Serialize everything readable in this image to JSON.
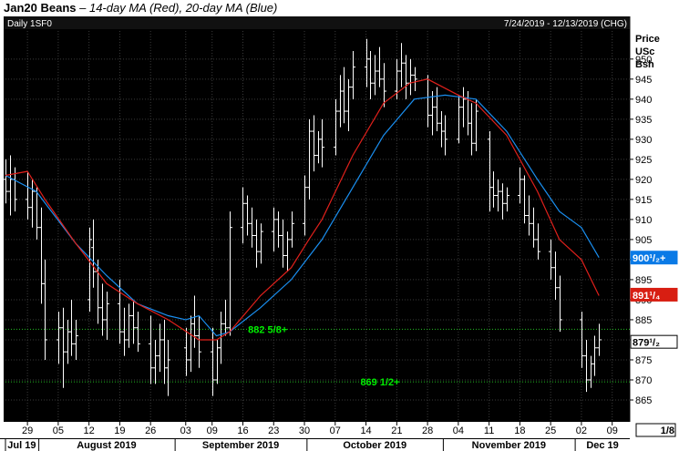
{
  "header": {
    "title": "Jan20 Beans",
    "subtitle": "14-day MA (Red), 20-day MA (Blue)"
  },
  "panel": {
    "left_label": "Daily 1SF0",
    "right_label": "7/24/2019 - 12/13/2019 (CHG)",
    "axis_title_lines": [
      "Price",
      "USc",
      "Bsh"
    ],
    "scale_label": "1/8"
  },
  "colors": {
    "background": "#000000",
    "axis_panel": "#ffffff",
    "bars": "#ffffff",
    "ma14": "#e0201b",
    "ma20": "#1a8ff0",
    "level_lines": "#22bb22",
    "level_text": "#00ee00",
    "ma20_tag": "#0a7ae6",
    "ma14_tag": "#d81e12"
  },
  "chart_data": {
    "type": "ohlc",
    "title": "Jan20 Beans",
    "subtitle": "14-day MA (Red), 20-day MA (Blue)",
    "ylabel": "Price USc Bsh",
    "ylim": [
      860,
      957
    ],
    "grid": true,
    "y_ticks": [
      865,
      870,
      875,
      880,
      885,
      890,
      895,
      900,
      905,
      910,
      915,
      920,
      925,
      930,
      935,
      940,
      945,
      950
    ],
    "y_tick_labels": [
      "865",
      "870",
      "875",
      "880",
      "885",
      "890",
      "895",
      "900",
      "905",
      "910",
      "915",
      "920",
      "925",
      "930",
      "935",
      "940",
      "945",
      "950"
    ],
    "x_ticks": [
      {
        "date": "2019-07-29",
        "label": "29"
      },
      {
        "date": "2019-08-05",
        "label": "05"
      },
      {
        "date": "2019-08-12",
        "label": "12"
      },
      {
        "date": "2019-08-19",
        "label": "19"
      },
      {
        "date": "2019-08-26",
        "label": "26"
      },
      {
        "date": "2019-09-03",
        "label": "03"
      },
      {
        "date": "2019-09-09",
        "label": "09"
      },
      {
        "date": "2019-09-16",
        "label": "16"
      },
      {
        "date": "2019-09-23",
        "label": "23"
      },
      {
        "date": "2019-09-30",
        "label": "30"
      },
      {
        "date": "2019-10-07",
        "label": "07"
      },
      {
        "date": "2019-10-14",
        "label": "14"
      },
      {
        "date": "2019-10-21",
        "label": "21"
      },
      {
        "date": "2019-10-28",
        "label": "28"
      },
      {
        "date": "2019-11-04",
        "label": "04"
      },
      {
        "date": "2019-11-11",
        "label": "11"
      },
      {
        "date": "2019-11-18",
        "label": "18"
      },
      {
        "date": "2019-11-25",
        "label": "25"
      },
      {
        "date": "2019-12-02",
        "label": "02"
      },
      {
        "date": "2019-12-09",
        "label": "09"
      }
    ],
    "x_range": [
      "2019-07-24",
      "2019-12-13"
    ],
    "months": [
      {
        "label": "Jul 19",
        "start": "2019-07-24",
        "end": "2019-07-31"
      },
      {
        "label": "August 2019",
        "start": "2019-08-01",
        "end": "2019-08-31"
      },
      {
        "label": "September 2019",
        "start": "2019-09-01",
        "end": "2019-09-30"
      },
      {
        "label": "October 2019",
        "start": "2019-10-01",
        "end": "2019-10-31"
      },
      {
        "label": "November 2019",
        "start": "2019-11-01",
        "end": "2019-11-30"
      },
      {
        "label": "Dec 19",
        "start": "2019-12-01",
        "end": "2019-12-13"
      }
    ],
    "ohlc": [
      {
        "d": "2019-07-24",
        "o": 920,
        "h": 925,
        "l": 914,
        "c": 917
      },
      {
        "d": "2019-07-25",
        "o": 917,
        "h": 926,
        "l": 911,
        "c": 920
      },
      {
        "d": "2019-07-26",
        "o": 920,
        "h": 923,
        "l": 912,
        "c": 915
      },
      {
        "d": "2019-07-29",
        "o": 915,
        "h": 922,
        "l": 910,
        "c": 913
      },
      {
        "d": "2019-07-30",
        "o": 913,
        "h": 920,
        "l": 908,
        "c": 917
      },
      {
        "d": "2019-07-31",
        "o": 917,
        "h": 918,
        "l": 905,
        "c": 908
      },
      {
        "d": "2019-08-01",
        "o": 908,
        "h": 913,
        "l": 889,
        "c": 894
      },
      {
        "d": "2019-08-02",
        "o": 894,
        "h": 900,
        "l": 875,
        "c": 880
      },
      {
        "d": "2019-08-05",
        "o": 880,
        "h": 887,
        "l": 874,
        "c": 883
      },
      {
        "d": "2019-08-06",
        "o": 883,
        "h": 888,
        "l": 868,
        "c": 877
      },
      {
        "d": "2019-08-07",
        "o": 877,
        "h": 885,
        "l": 874,
        "c": 882
      },
      {
        "d": "2019-08-08",
        "o": 882,
        "h": 890,
        "l": 876,
        "c": 879
      },
      {
        "d": "2019-08-09",
        "o": 879,
        "h": 885,
        "l": 875,
        "c": 881
      },
      {
        "d": "2019-08-12",
        "o": 890,
        "h": 908,
        "l": 887,
        "c": 905
      },
      {
        "d": "2019-08-13",
        "o": 903,
        "h": 910,
        "l": 893,
        "c": 897
      },
      {
        "d": "2019-08-14",
        "o": 897,
        "h": 900,
        "l": 884,
        "c": 888
      },
      {
        "d": "2019-08-15",
        "o": 888,
        "h": 894,
        "l": 881,
        "c": 885
      },
      {
        "d": "2019-08-16",
        "o": 885,
        "h": 892,
        "l": 880,
        "c": 889
      },
      {
        "d": "2019-08-19",
        "o": 889,
        "h": 895,
        "l": 879,
        "c": 882
      },
      {
        "d": "2019-08-20",
        "o": 882,
        "h": 888,
        "l": 876,
        "c": 880
      },
      {
        "d": "2019-08-21",
        "o": 880,
        "h": 889,
        "l": 878,
        "c": 886
      },
      {
        "d": "2019-08-22",
        "o": 886,
        "h": 890,
        "l": 879,
        "c": 883
      },
      {
        "d": "2019-08-23",
        "o": 883,
        "h": 887,
        "l": 877,
        "c": 879
      },
      {
        "d": "2019-08-26",
        "o": 879,
        "h": 886,
        "l": 869,
        "c": 873
      },
      {
        "d": "2019-08-27",
        "o": 873,
        "h": 880,
        "l": 869,
        "c": 876
      },
      {
        "d": "2019-08-28",
        "o": 876,
        "h": 884,
        "l": 872,
        "c": 880
      },
      {
        "d": "2019-08-29",
        "o": 880,
        "h": 885,
        "l": 869,
        "c": 873
      },
      {
        "d": "2019-08-30",
        "o": 873,
        "h": 880,
        "l": 866,
        "c": 875
      },
      {
        "d": "2019-09-03",
        "o": 878,
        "h": 883,
        "l": 871,
        "c": 875
      },
      {
        "d": "2019-09-04",
        "o": 875,
        "h": 886,
        "l": 872,
        "c": 884
      },
      {
        "d": "2019-09-05",
        "o": 884,
        "h": 891,
        "l": 878,
        "c": 881
      },
      {
        "d": "2019-09-06",
        "o": 881,
        "h": 886,
        "l": 873,
        "c": 877
      },
      {
        "d": "2019-09-09",
        "o": 877,
        "h": 883,
        "l": 866,
        "c": 870
      },
      {
        "d": "2019-09-10",
        "o": 870,
        "h": 880,
        "l": 869,
        "c": 878
      },
      {
        "d": "2019-09-11",
        "o": 878,
        "h": 887,
        "l": 874,
        "c": 884
      },
      {
        "d": "2019-09-12",
        "o": 884,
        "h": 890,
        "l": 881,
        "c": 883
      },
      {
        "d": "2019-09-13",
        "o": 883,
        "h": 912,
        "l": 881,
        "c": 908
      },
      {
        "d": "2019-09-16",
        "o": 908,
        "h": 918,
        "l": 904,
        "c": 914
      },
      {
        "d": "2019-09-17",
        "o": 914,
        "h": 916,
        "l": 906,
        "c": 909
      },
      {
        "d": "2019-09-18",
        "o": 909,
        "h": 913,
        "l": 903,
        "c": 906
      },
      {
        "d": "2019-09-19",
        "o": 906,
        "h": 910,
        "l": 898,
        "c": 902
      },
      {
        "d": "2019-09-20",
        "o": 902,
        "h": 909,
        "l": 899,
        "c": 907
      },
      {
        "d": "2019-09-23",
        "o": 907,
        "h": 913,
        "l": 902,
        "c": 910
      },
      {
        "d": "2019-09-24",
        "o": 910,
        "h": 912,
        "l": 903,
        "c": 906
      },
      {
        "d": "2019-09-25",
        "o": 906,
        "h": 910,
        "l": 898,
        "c": 901
      },
      {
        "d": "2019-09-26",
        "o": 901,
        "h": 907,
        "l": 897,
        "c": 905
      },
      {
        "d": "2019-09-27",
        "o": 905,
        "h": 912,
        "l": 903,
        "c": 909
      },
      {
        "d": "2019-09-30",
        "o": 909,
        "h": 921,
        "l": 906,
        "c": 918
      },
      {
        "d": "2019-10-01",
        "o": 918,
        "h": 935,
        "l": 915,
        "c": 932
      },
      {
        "d": "2019-10-02",
        "o": 932,
        "h": 936,
        "l": 922,
        "c": 926
      },
      {
        "d": "2019-10-03",
        "o": 926,
        "h": 932,
        "l": 924,
        "c": 930
      },
      {
        "d": "2019-10-04",
        "o": 930,
        "h": 935,
        "l": 923,
        "c": 928
      },
      {
        "d": "2019-10-07",
        "o": 928,
        "h": 940,
        "l": 926,
        "c": 937
      },
      {
        "d": "2019-10-08",
        "o": 937,
        "h": 946,
        "l": 933,
        "c": 942
      },
      {
        "d": "2019-10-09",
        "o": 942,
        "h": 948,
        "l": 934,
        "c": 937
      },
      {
        "d": "2019-10-10",
        "o": 937,
        "h": 945,
        "l": 932,
        "c": 943
      },
      {
        "d": "2019-10-11",
        "o": 943,
        "h": 952,
        "l": 940,
        "c": 948
      },
      {
        "d": "2019-10-14",
        "o": 948,
        "h": 955,
        "l": 943,
        "c": 950
      },
      {
        "d": "2019-10-15",
        "o": 950,
        "h": 952,
        "l": 940,
        "c": 944
      },
      {
        "d": "2019-10-16",
        "o": 944,
        "h": 951,
        "l": 941,
        "c": 947
      },
      {
        "d": "2019-10-17",
        "o": 947,
        "h": 953,
        "l": 943,
        "c": 945
      },
      {
        "d": "2019-10-18",
        "o": 945,
        "h": 949,
        "l": 938,
        "c": 942
      },
      {
        "d": "2019-10-21",
        "o": 942,
        "h": 950,
        "l": 940,
        "c": 947
      },
      {
        "d": "2019-10-22",
        "o": 947,
        "h": 954,
        "l": 943,
        "c": 949
      },
      {
        "d": "2019-10-23",
        "o": 949,
        "h": 951,
        "l": 940,
        "c": 944
      },
      {
        "d": "2019-10-24",
        "o": 944,
        "h": 950,
        "l": 941,
        "c": 946
      },
      {
        "d": "2019-10-25",
        "o": 946,
        "h": 948,
        "l": 942,
        "c": 945
      },
      {
        "d": "2019-10-28",
        "o": 945,
        "h": 946,
        "l": 933,
        "c": 936
      },
      {
        "d": "2019-10-29",
        "o": 936,
        "h": 942,
        "l": 931,
        "c": 938
      },
      {
        "d": "2019-10-30",
        "o": 938,
        "h": 943,
        "l": 932,
        "c": 934
      },
      {
        "d": "2019-10-31",
        "o": 934,
        "h": 937,
        "l": 928,
        "c": 932
      },
      {
        "d": "2019-11-01",
        "o": 932,
        "h": 936,
        "l": 926,
        "c": 930
      },
      {
        "d": "2019-11-04",
        "o": 930,
        "h": 941,
        "l": 929,
        "c": 938
      },
      {
        "d": "2019-11-05",
        "o": 938,
        "h": 943,
        "l": 933,
        "c": 940
      },
      {
        "d": "2019-11-06",
        "o": 940,
        "h": 942,
        "l": 931,
        "c": 934
      },
      {
        "d": "2019-11-07",
        "o": 934,
        "h": 939,
        "l": 926,
        "c": 929
      },
      {
        "d": "2019-11-08",
        "o": 929,
        "h": 940,
        "l": 927,
        "c": 937
      },
      {
        "d": "2019-11-11",
        "o": 930,
        "h": 932,
        "l": 912,
        "c": 918
      },
      {
        "d": "2019-11-12",
        "o": 918,
        "h": 922,
        "l": 913,
        "c": 916
      },
      {
        "d": "2019-11-13",
        "o": 916,
        "h": 920,
        "l": 912,
        "c": 917
      },
      {
        "d": "2019-11-14",
        "o": 917,
        "h": 919,
        "l": 910,
        "c": 914
      },
      {
        "d": "2019-11-15",
        "o": 914,
        "h": 918,
        "l": 912,
        "c": 916
      },
      {
        "d": "2019-11-18",
        "o": 916,
        "h": 923,
        "l": 914,
        "c": 920
      },
      {
        "d": "2019-11-19",
        "o": 920,
        "h": 921,
        "l": 909,
        "c": 911
      },
      {
        "d": "2019-11-20",
        "o": 911,
        "h": 916,
        "l": 906,
        "c": 909
      },
      {
        "d": "2019-11-21",
        "o": 909,
        "h": 913,
        "l": 903,
        "c": 905
      },
      {
        "d": "2019-11-22",
        "o": 905,
        "h": 909,
        "l": 900,
        "c": 902
      },
      {
        "d": "2019-11-25",
        "o": 902,
        "h": 905,
        "l": 895,
        "c": 898
      },
      {
        "d": "2019-11-26",
        "o": 898,
        "h": 902,
        "l": 890,
        "c": 893
      },
      {
        "d": "2019-11-27",
        "o": 893,
        "h": 896,
        "l": 882,
        "c": 885
      },
      {
        "d": "2019-12-02",
        "o": 885,
        "h": 887,
        "l": 873,
        "c": 876
      },
      {
        "d": "2019-12-03",
        "o": 876,
        "h": 880,
        "l": 867,
        "c": 870
      },
      {
        "d": "2019-12-04",
        "o": 870,
        "h": 876,
        "l": 868,
        "c": 874
      },
      {
        "d": "2019-12-05",
        "o": 874,
        "h": 881,
        "l": 871,
        "c": 878
      },
      {
        "d": "2019-12-06",
        "o": 878,
        "h": 884,
        "l": 876,
        "c": 880
      }
    ],
    "ma14_anchors": [
      {
        "d": "2019-07-24",
        "v": 921
      },
      {
        "d": "2019-07-29",
        "v": 922
      },
      {
        "d": "2019-08-02",
        "v": 915
      },
      {
        "d": "2019-08-09",
        "v": 904
      },
      {
        "d": "2019-08-16",
        "v": 894
      },
      {
        "d": "2019-08-23",
        "v": 889
      },
      {
        "d": "2019-08-30",
        "v": 885
      },
      {
        "d": "2019-09-06",
        "v": 880
      },
      {
        "d": "2019-09-10",
        "v": 880
      },
      {
        "d": "2019-09-13",
        "v": 882
      },
      {
        "d": "2019-09-20",
        "v": 891
      },
      {
        "d": "2019-09-27",
        "v": 898
      },
      {
        "d": "2019-10-01",
        "v": 905
      },
      {
        "d": "2019-10-04",
        "v": 910
      },
      {
        "d": "2019-10-11",
        "v": 926
      },
      {
        "d": "2019-10-18",
        "v": 939
      },
      {
        "d": "2019-10-24",
        "v": 944
      },
      {
        "d": "2019-10-28",
        "v": 945
      },
      {
        "d": "2019-11-04",
        "v": 941
      },
      {
        "d": "2019-11-08",
        "v": 939
      },
      {
        "d": "2019-11-15",
        "v": 931
      },
      {
        "d": "2019-11-22",
        "v": 917
      },
      {
        "d": "2019-11-27",
        "v": 905
      },
      {
        "d": "2019-12-02",
        "v": 900
      },
      {
        "d": "2019-12-06",
        "v": 891
      }
    ],
    "ma20_anchors": [
      {
        "d": "2019-07-24",
        "v": 921
      },
      {
        "d": "2019-07-31",
        "v": 917
      },
      {
        "d": "2019-08-09",
        "v": 904
      },
      {
        "d": "2019-08-16",
        "v": 896
      },
      {
        "d": "2019-08-23",
        "v": 889
      },
      {
        "d": "2019-08-30",
        "v": 886
      },
      {
        "d": "2019-09-03",
        "v": 885
      },
      {
        "d": "2019-09-06",
        "v": 886
      },
      {
        "d": "2019-09-10",
        "v": 881
      },
      {
        "d": "2019-09-13",
        "v": 882
      },
      {
        "d": "2019-09-20",
        "v": 888
      },
      {
        "d": "2019-09-27",
        "v": 895
      },
      {
        "d": "2019-10-04",
        "v": 905
      },
      {
        "d": "2019-10-11",
        "v": 918
      },
      {
        "d": "2019-10-18",
        "v": 931
      },
      {
        "d": "2019-10-25",
        "v": 940
      },
      {
        "d": "2019-11-01",
        "v": 941
      },
      {
        "d": "2019-11-08",
        "v": 940
      },
      {
        "d": "2019-11-15",
        "v": 932
      },
      {
        "d": "2019-11-22",
        "v": 920
      },
      {
        "d": "2019-11-27",
        "v": 912
      },
      {
        "d": "2019-12-02",
        "v": 908
      },
      {
        "d": "2019-12-06",
        "v": 900.5
      }
    ],
    "levels": [
      {
        "value": 882.625,
        "label": "882 5/8+"
      },
      {
        "value": 869.5,
        "label": "869 1/2+"
      }
    ],
    "price_tags": [
      {
        "series": "ma20",
        "value": 900.5,
        "label": "900¹/₂+"
      },
      {
        "series": "ma14",
        "value": 891.25,
        "label": "891¹/₄"
      },
      {
        "series": "last",
        "value": 879.5,
        "label": "879¹/₂"
      }
    ]
  }
}
